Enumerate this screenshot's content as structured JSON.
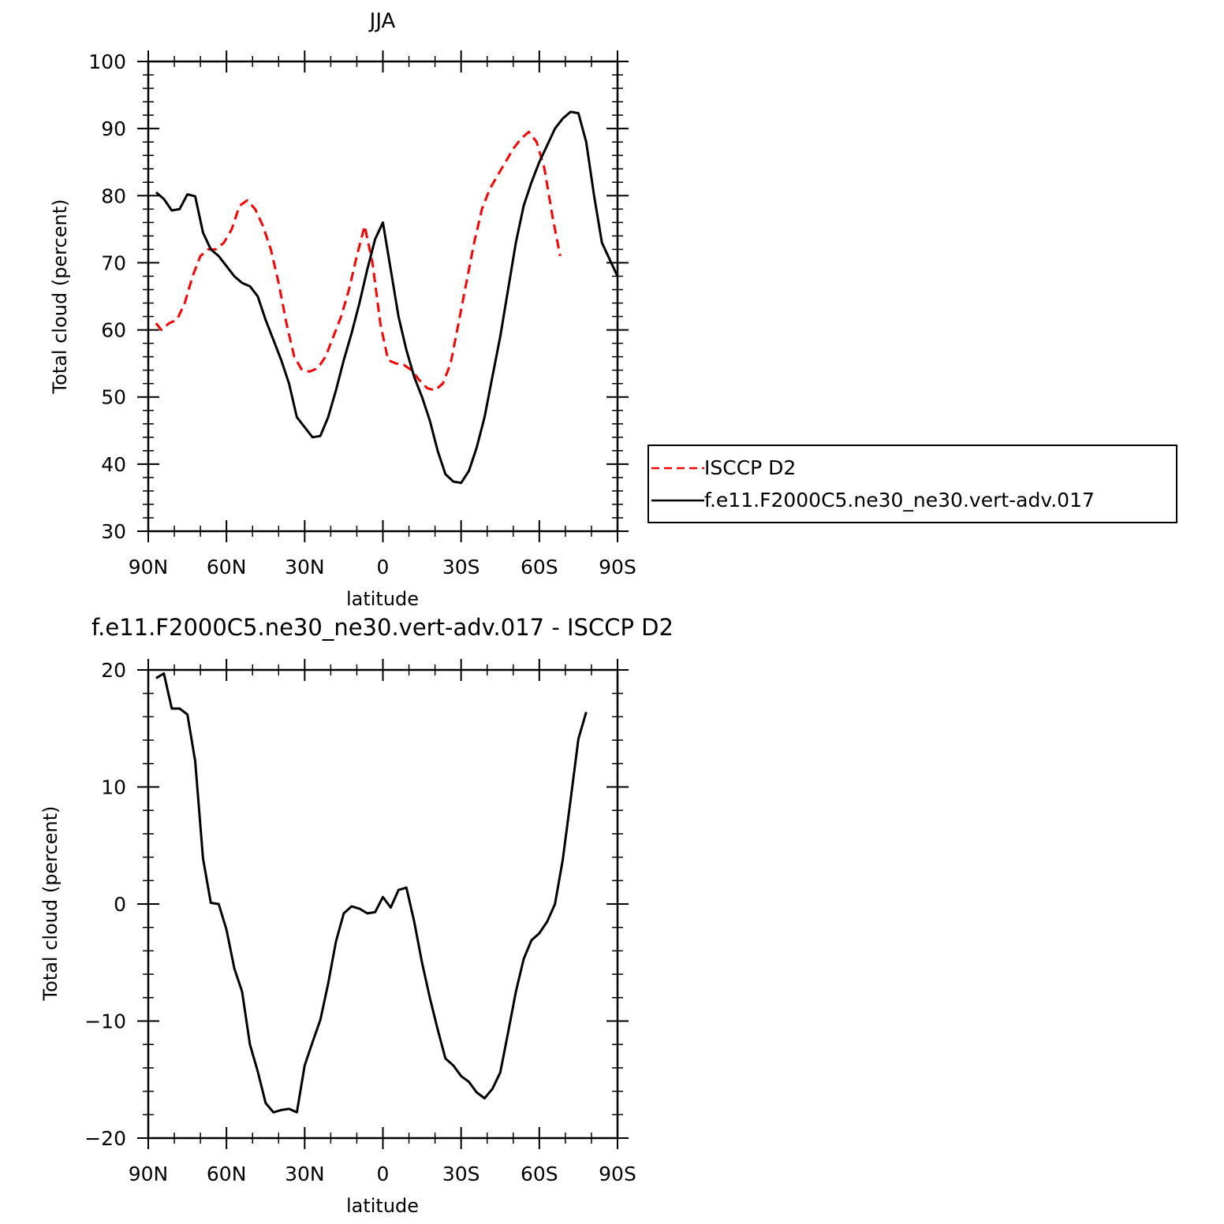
{
  "chart_data": [
    {
      "type": "line",
      "title": "JJA",
      "xlabel": "latitude",
      "ylabel": "Total cloud (percent)",
      "xlim": [
        90,
        -90
      ],
      "ylim": [
        30,
        100
      ],
      "x_ticks": [
        {
          "value": 90,
          "label": "90N"
        },
        {
          "value": 60,
          "label": "60N"
        },
        {
          "value": 30,
          "label": "30N"
        },
        {
          "value": 0,
          "label": "0"
        },
        {
          "value": -30,
          "label": "30S"
        },
        {
          "value": -60,
          "label": "60S"
        },
        {
          "value": -90,
          "label": "90S"
        }
      ],
      "y_ticks": [
        30,
        40,
        50,
        60,
        70,
        80,
        90,
        100
      ],
      "legend_position": "right",
      "series": [
        {
          "name": "ISCCP D2",
          "color": "#ff0000",
          "dash": "dashed",
          "points": [
            [
              87,
              61
            ],
            [
              85,
              60
            ],
            [
              82,
              61
            ],
            [
              79,
              61.5
            ],
            [
              76,
              64
            ],
            [
              73,
              68
            ],
            [
              70,
              71
            ],
            [
              67,
              72
            ],
            [
              64,
              72
            ],
            [
              61,
              73
            ],
            [
              58,
              75
            ],
            [
              55,
              78.5
            ],
            [
              52,
              79.3
            ],
            [
              49,
              78
            ],
            [
              46,
              75.5
            ],
            [
              43,
              72
            ],
            [
              40,
              67
            ],
            [
              37,
              61
            ],
            [
              34,
              56
            ],
            [
              31,
              54
            ],
            [
              28,
              53.8
            ],
            [
              25,
              54.3
            ],
            [
              22,
              56
            ],
            [
              19,
              59
            ],
            [
              16,
              62
            ],
            [
              13,
              66
            ],
            [
              10,
              71
            ],
            [
              7,
              75.5
            ],
            [
              4,
              70
            ],
            [
              1,
              61
            ],
            [
              -2,
              55.5
            ],
            [
              -5,
              55
            ],
            [
              -8,
              54.8
            ],
            [
              -11,
              54
            ],
            [
              -14,
              52.5
            ],
            [
              -17,
              51.3
            ],
            [
              -20,
              51
            ],
            [
              -23,
              52
            ],
            [
              -26,
              55
            ],
            [
              -29,
              61
            ],
            [
              -32,
              67
            ],
            [
              -35,
              73
            ],
            [
              -38,
              78
            ],
            [
              -41,
              81
            ],
            [
              -44,
              83
            ],
            [
              -47,
              85
            ],
            [
              -50,
              87
            ],
            [
              -53,
              88.5
            ],
            [
              -56,
              89.5
            ],
            [
              -59,
              88
            ],
            [
              -62,
              84
            ],
            [
              -65,
              77
            ],
            [
              -68,
              71
            ]
          ]
        },
        {
          "name": "f.e11.F2000C5.ne30_ne30.vert-adv.017",
          "color": "#000000",
          "dash": "solid",
          "points": [
            [
              87,
              80.5
            ],
            [
              84,
              79.5
            ],
            [
              81,
              77.8
            ],
            [
              78,
              78
            ],
            [
              75,
              80.2
            ],
            [
              72,
              79.9
            ],
            [
              69,
              74.5
            ],
            [
              66,
              72
            ],
            [
              63,
              71
            ],
            [
              60,
              69.5
            ],
            [
              57,
              68
            ],
            [
              54,
              67
            ],
            [
              51,
              66.5
            ],
            [
              48,
              65
            ],
            [
              45,
              61.5
            ],
            [
              42,
              58.5
            ],
            [
              39,
              55.5
            ],
            [
              36,
              52
            ],
            [
              33,
              47
            ],
            [
              30,
              45.5
            ],
            [
              27,
              44
            ],
            [
              24,
              44.2
            ],
            [
              21,
              47
            ],
            [
              18,
              51
            ],
            [
              15,
              55.5
            ],
            [
              12,
              59.5
            ],
            [
              9,
              64
            ],
            [
              6,
              69
            ],
            [
              3,
              73.5
            ],
            [
              0,
              76
            ],
            [
              -3,
              69
            ],
            [
              -6,
              62
            ],
            [
              -9,
              57
            ],
            [
              -12,
              53
            ],
            [
              -15,
              50
            ],
            [
              -18,
              46.5
            ],
            [
              -21,
              42
            ],
            [
              -24,
              38.5
            ],
            [
              -27,
              37.4
            ],
            [
              -30,
              37.2
            ],
            [
              -33,
              39
            ],
            [
              -36,
              42.5
            ],
            [
              -39,
              47
            ],
            [
              -42,
              53
            ],
            [
              -45,
              59
            ],
            [
              -48,
              66
            ],
            [
              -51,
              73
            ],
            [
              -54,
              78.5
            ],
            [
              -57,
              82
            ],
            [
              -60,
              85
            ],
            [
              -63,
              87.5
            ],
            [
              -66,
              90
            ],
            [
              -69,
              91.5
            ],
            [
              -72,
              92.5
            ],
            [
              -75,
              92.3
            ],
            [
              -78,
              88
            ],
            [
              -81,
              80
            ],
            [
              -84,
              73
            ],
            [
              -87,
              70.5
            ],
            [
              -90,
              68
            ]
          ]
        }
      ]
    },
    {
      "type": "line",
      "title": "f.e11.F2000C5.ne30_ne30.vert-adv.017 - ISCCP D2",
      "xlabel": "latitude",
      "ylabel": "Total cloud (percent)",
      "xlim": [
        90,
        -90
      ],
      "ylim": [
        -20,
        20
      ],
      "x_ticks": [
        {
          "value": 90,
          "label": "90N"
        },
        {
          "value": 60,
          "label": "60N"
        },
        {
          "value": 30,
          "label": "30N"
        },
        {
          "value": 0,
          "label": "0"
        },
        {
          "value": -30,
          "label": "30S"
        },
        {
          "value": -60,
          "label": "60S"
        },
        {
          "value": -90,
          "label": "90S"
        }
      ],
      "y_ticks": [
        -20,
        -10,
        0,
        10,
        20
      ],
      "series": [
        {
          "color": "#000000",
          "dash": "solid",
          "points": [
            [
              87,
              19.3
            ],
            [
              84,
              19.7
            ],
            [
              81,
              16.7
            ],
            [
              78,
              16.7
            ],
            [
              75,
              16.2
            ],
            [
              72,
              12.2
            ],
            [
              69,
              3.9
            ],
            [
              66,
              0.1
            ],
            [
              63,
              0
            ],
            [
              60,
              -2.2
            ],
            [
              57,
              -5.5
            ],
            [
              54,
              -7.5
            ],
            [
              51,
              -12
            ],
            [
              48,
              -14.3
            ],
            [
              45,
              -17
            ],
            [
              42,
              -17.8
            ],
            [
              39,
              -17.6
            ],
            [
              36,
              -17.5
            ],
            [
              33,
              -17.8
            ],
            [
              30,
              -13.8
            ],
            [
              27,
              -11.8
            ],
            [
              24,
              -9.9
            ],
            [
              21,
              -6.8
            ],
            [
              18,
              -3.2
            ],
            [
              15,
              -0.8
            ],
            [
              12,
              -0.2
            ],
            [
              9,
              -0.4
            ],
            [
              6,
              -0.8
            ],
            [
              3,
              -0.7
            ],
            [
              0,
              0.6
            ],
            [
              -3,
              -0.3
            ],
            [
              -6,
              1.2
            ],
            [
              -9,
              1.4
            ],
            [
              -12,
              -1.5
            ],
            [
              -15,
              -5
            ],
            [
              -18,
              -8
            ],
            [
              -21,
              -10.7
            ],
            [
              -24,
              -13.2
            ],
            [
              -27,
              -13.8
            ],
            [
              -30,
              -14.7
            ],
            [
              -33,
              -15.2
            ],
            [
              -36,
              -16.1
            ],
            [
              -39,
              -16.6
            ],
            [
              -42,
              -15.8
            ],
            [
              -45,
              -14.4
            ],
            [
              -48,
              -11
            ],
            [
              -51,
              -7.5
            ],
            [
              -54,
              -4.7
            ],
            [
              -57,
              -3.1
            ],
            [
              -60,
              -2.5
            ],
            [
              -63,
              -1.5
            ],
            [
              -66,
              0
            ],
            [
              -69,
              3.8
            ],
            [
              -72,
              8.9
            ],
            [
              -75,
              14.1
            ],
            [
              -78,
              16.4
            ]
          ]
        }
      ]
    }
  ]
}
